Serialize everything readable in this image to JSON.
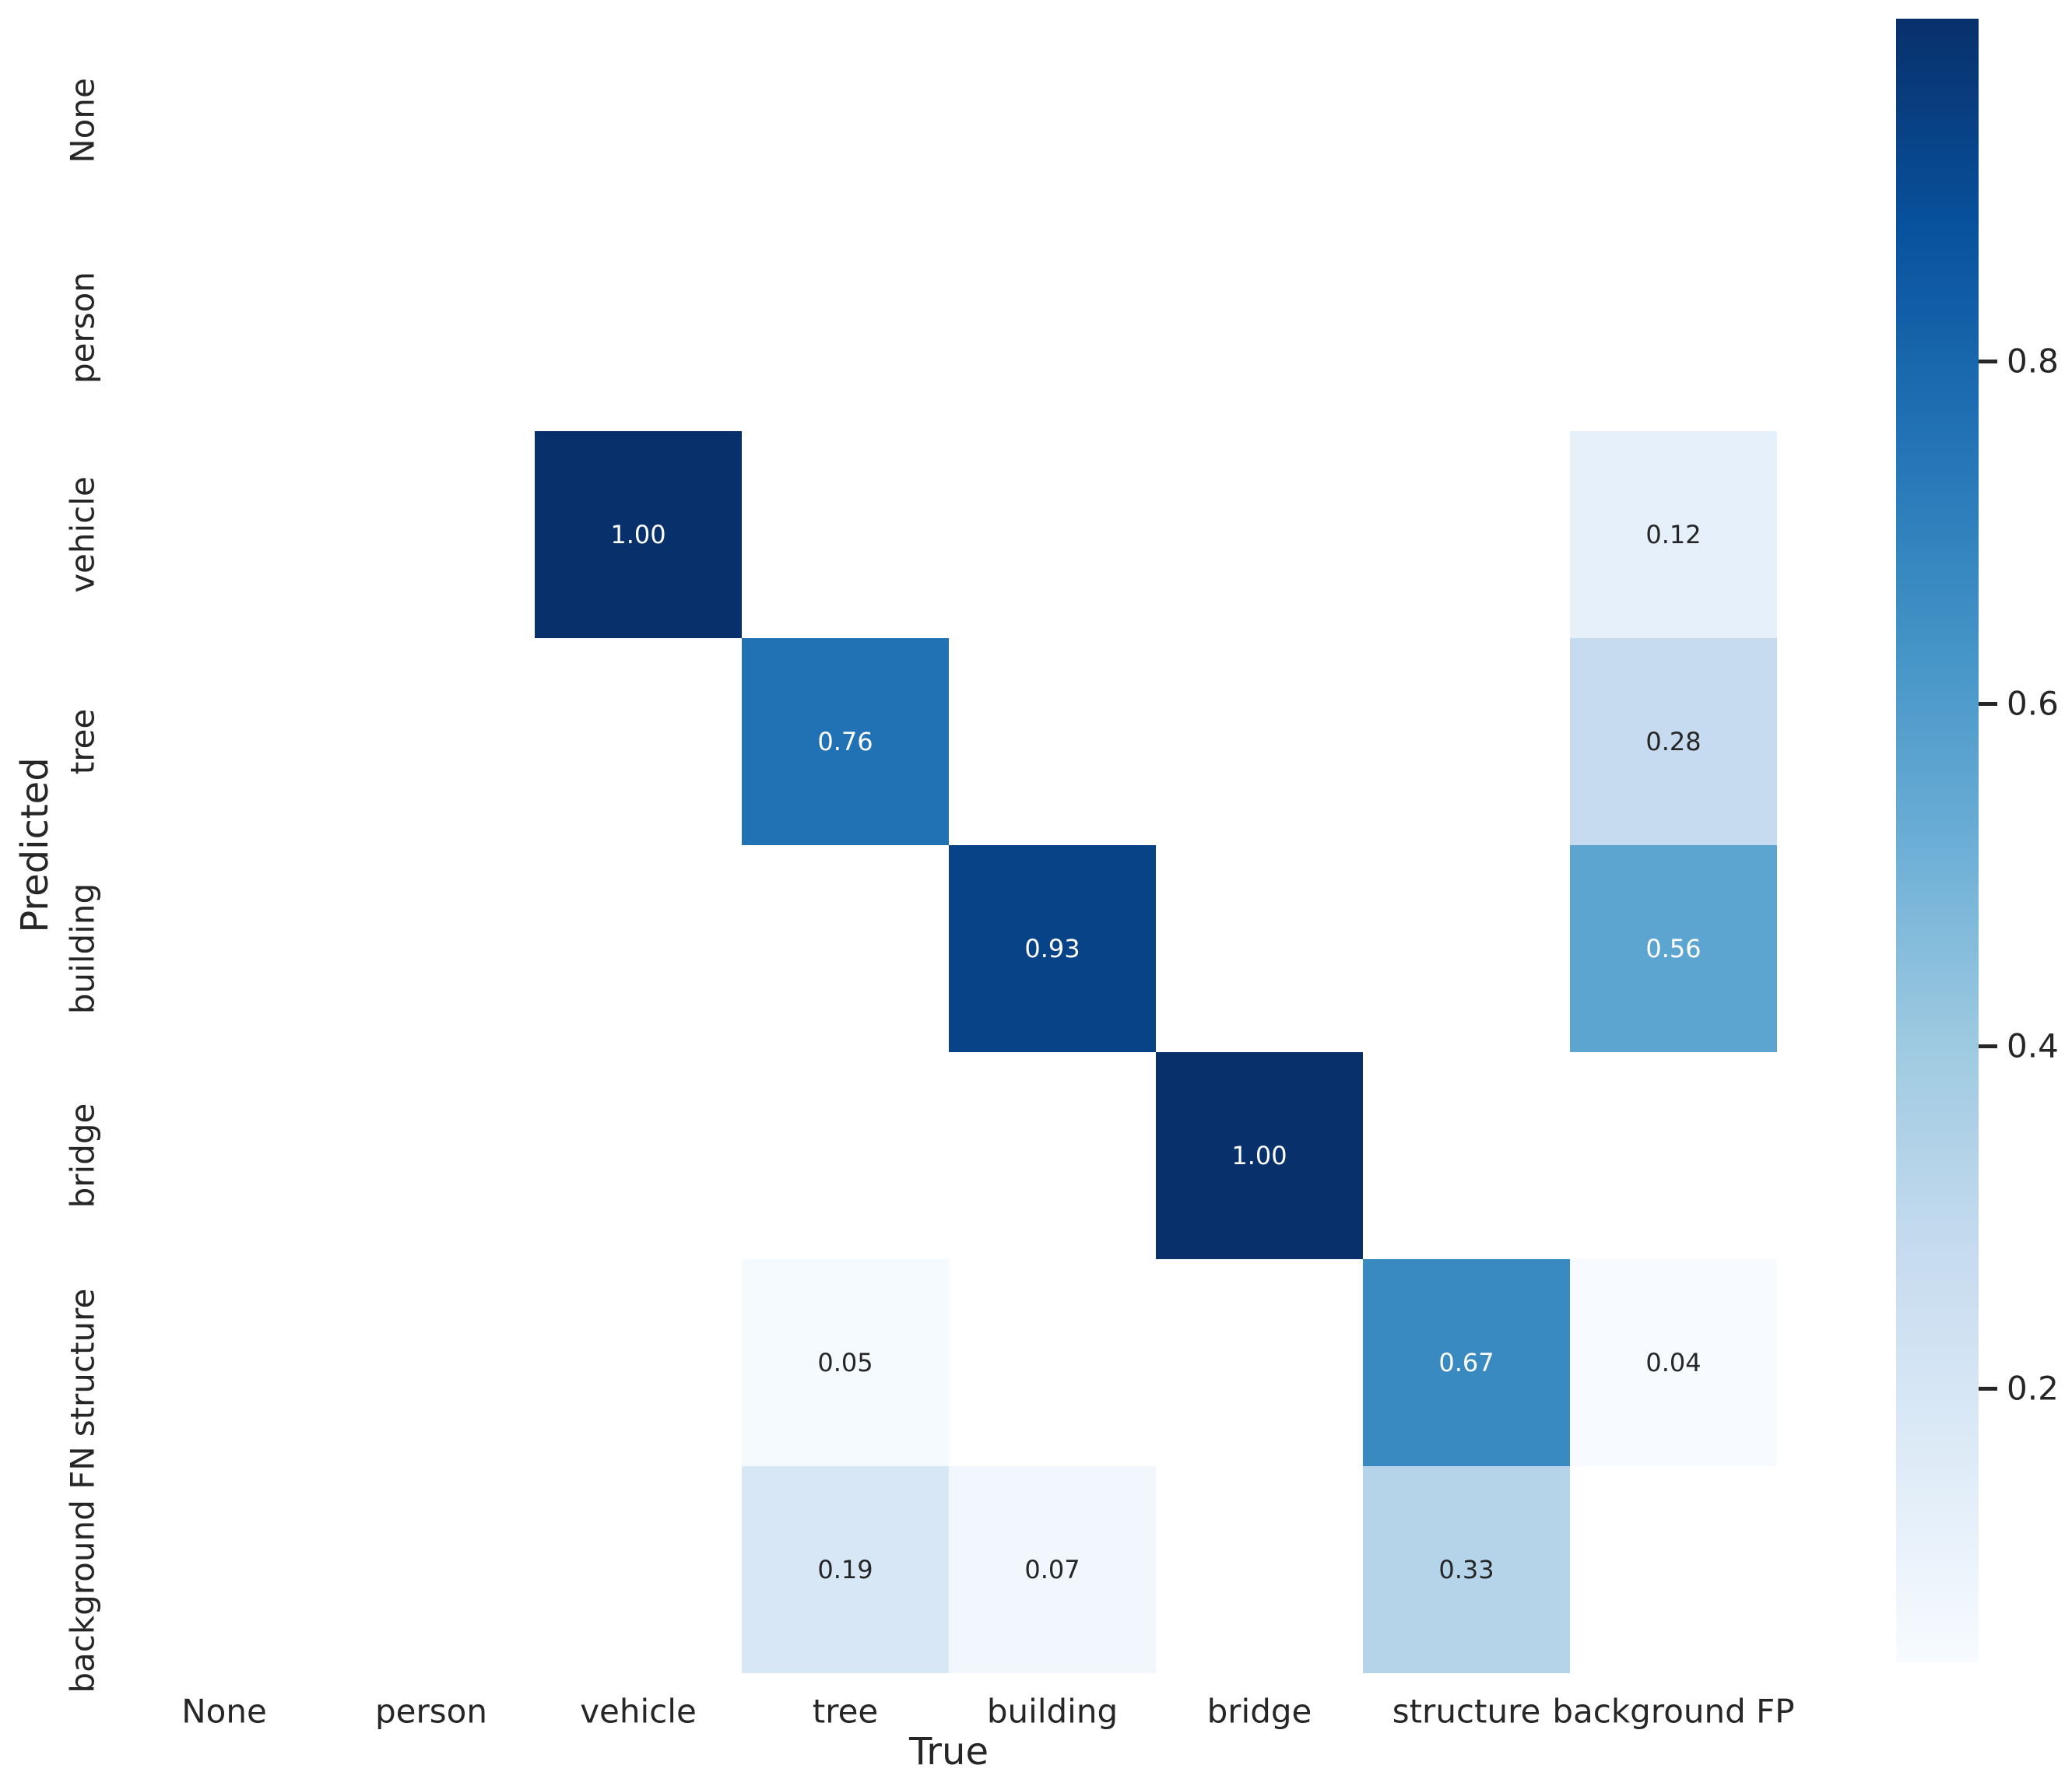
{
  "figure": {
    "background": "#ffffff"
  },
  "axes": {
    "x_title": "True",
    "y_title": "Predicted"
  },
  "chart_data": {
    "type": "heatmap",
    "title": "",
    "xlabel": "True",
    "ylabel": "Predicted",
    "x_categories": [
      "None",
      "person",
      "vehicle",
      "tree",
      "building",
      "bridge",
      "structure",
      "background FP"
    ],
    "y_categories": [
      "None",
      "person",
      "vehicle",
      "tree",
      "building",
      "bridge",
      "structure",
      "background FN"
    ],
    "cells": [
      {
        "row": 2,
        "col": 2,
        "predicted": "vehicle",
        "true": "vehicle",
        "value": 1.0,
        "label": "1.00"
      },
      {
        "row": 2,
        "col": 7,
        "predicted": "vehicle",
        "true": "background FP",
        "value": 0.12,
        "label": "0.12"
      },
      {
        "row": 3,
        "col": 3,
        "predicted": "tree",
        "true": "tree",
        "value": 0.76,
        "label": "0.76"
      },
      {
        "row": 3,
        "col": 7,
        "predicted": "tree",
        "true": "background FP",
        "value": 0.28,
        "label": "0.28"
      },
      {
        "row": 4,
        "col": 4,
        "predicted": "building",
        "true": "building",
        "value": 0.93,
        "label": "0.93"
      },
      {
        "row": 4,
        "col": 7,
        "predicted": "building",
        "true": "background FP",
        "value": 0.56,
        "label": "0.56"
      },
      {
        "row": 5,
        "col": 5,
        "predicted": "bridge",
        "true": "bridge",
        "value": 1.0,
        "label": "1.00"
      },
      {
        "row": 6,
        "col": 3,
        "predicted": "structure",
        "true": "tree",
        "value": 0.05,
        "label": "0.05"
      },
      {
        "row": 6,
        "col": 6,
        "predicted": "structure",
        "true": "structure",
        "value": 0.67,
        "label": "0.67"
      },
      {
        "row": 6,
        "col": 7,
        "predicted": "structure",
        "true": "background FP",
        "value": 0.04,
        "label": "0.04"
      },
      {
        "row": 7,
        "col": 3,
        "predicted": "background FN",
        "true": "tree",
        "value": 0.19,
        "label": "0.19"
      },
      {
        "row": 7,
        "col": 4,
        "predicted": "background FN",
        "true": "building",
        "value": 0.07,
        "label": "0.07"
      },
      {
        "row": 7,
        "col": 6,
        "predicted": "background FN",
        "true": "structure",
        "value": 0.33,
        "label": "0.33"
      }
    ],
    "colormap": "Blues",
    "colormap_anchors": [
      "#f7fbff",
      "#deebf7",
      "#c6dbef",
      "#9ecae1",
      "#6baed6",
      "#4292c6",
      "#2171b5",
      "#08519c",
      "#08306b"
    ],
    "vmin": 0.04,
    "vmax": 1.0,
    "empty_cell_color": "#ffffff",
    "annotation_color_light": "#ffffff",
    "annotation_color_dark": "#262626",
    "grid": false,
    "legend_position": "colorbar-right",
    "colorbar_ticks": [
      {
        "value": 0.8,
        "label": "0.8"
      },
      {
        "value": 0.6,
        "label": "0.6"
      },
      {
        "value": 0.4,
        "label": "0.4"
      },
      {
        "value": 0.2,
        "label": "0.2"
      }
    ]
  }
}
